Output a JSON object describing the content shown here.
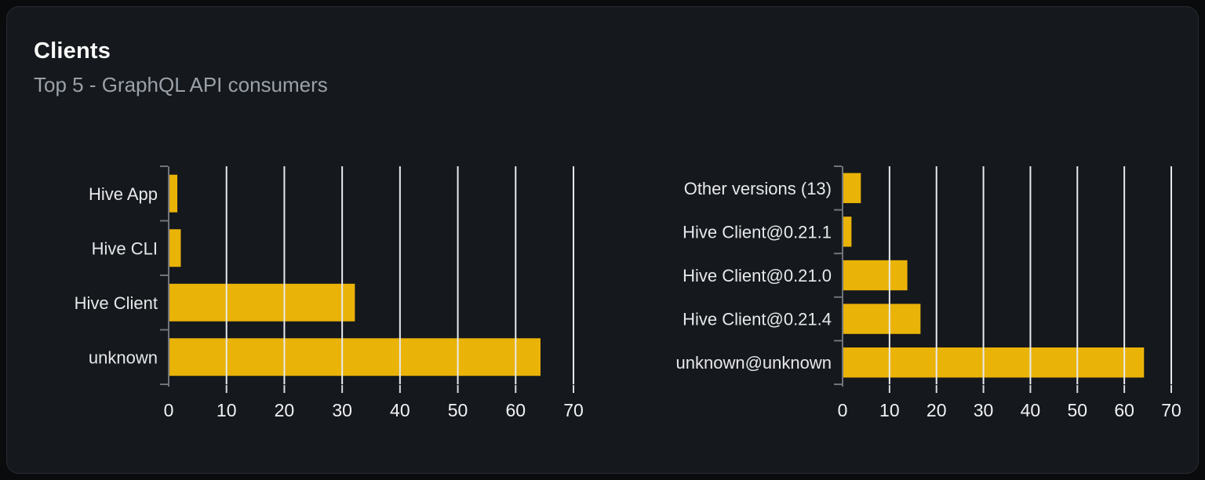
{
  "card": {
    "title": "Clients",
    "subtitle": "Top 5 - GraphQL API consumers"
  },
  "colors": {
    "page_bg": "#0a0b0d",
    "card_bg": "#15181c",
    "card_border": "#272b31",
    "title": "#fafafa",
    "subtitle": "#9aa1a9",
    "bar": "#eab308",
    "gridline": "#e7eaef",
    "axis": "#70747b",
    "x_tick": "#d6d9de",
    "category_label": "#e7e8ea",
    "tick_label": "#f1f2f4"
  },
  "chart_data": [
    {
      "type": "bar",
      "orientation": "horizontal",
      "name": "clients-by-name",
      "categories": [
        "Hive App",
        "Hive CLI",
        "Hive Client",
        "unknown"
      ],
      "values": [
        1.5,
        2.1,
        32.2,
        64.3
      ],
      "xticks": [
        0,
        10,
        20,
        30,
        40,
        50,
        60,
        70
      ],
      "xlim": [
        0,
        70
      ],
      "xlabel": "",
      "ylabel": "",
      "grid": true,
      "legend": false
    },
    {
      "type": "bar",
      "orientation": "horizontal",
      "name": "clients-by-version",
      "categories": [
        "Other versions (13)",
        "Hive Client@0.21.1",
        "Hive Client@0.21.0",
        "Hive Client@0.21.4",
        "unknown@unknown"
      ],
      "values": [
        3.9,
        1.9,
        13.8,
        16.6,
        64.2
      ],
      "xticks": [
        0,
        10,
        20,
        30,
        40,
        50,
        60,
        70
      ],
      "xlim": [
        0,
        70
      ],
      "xlabel": "",
      "ylabel": "",
      "grid": true,
      "legend": false
    }
  ]
}
